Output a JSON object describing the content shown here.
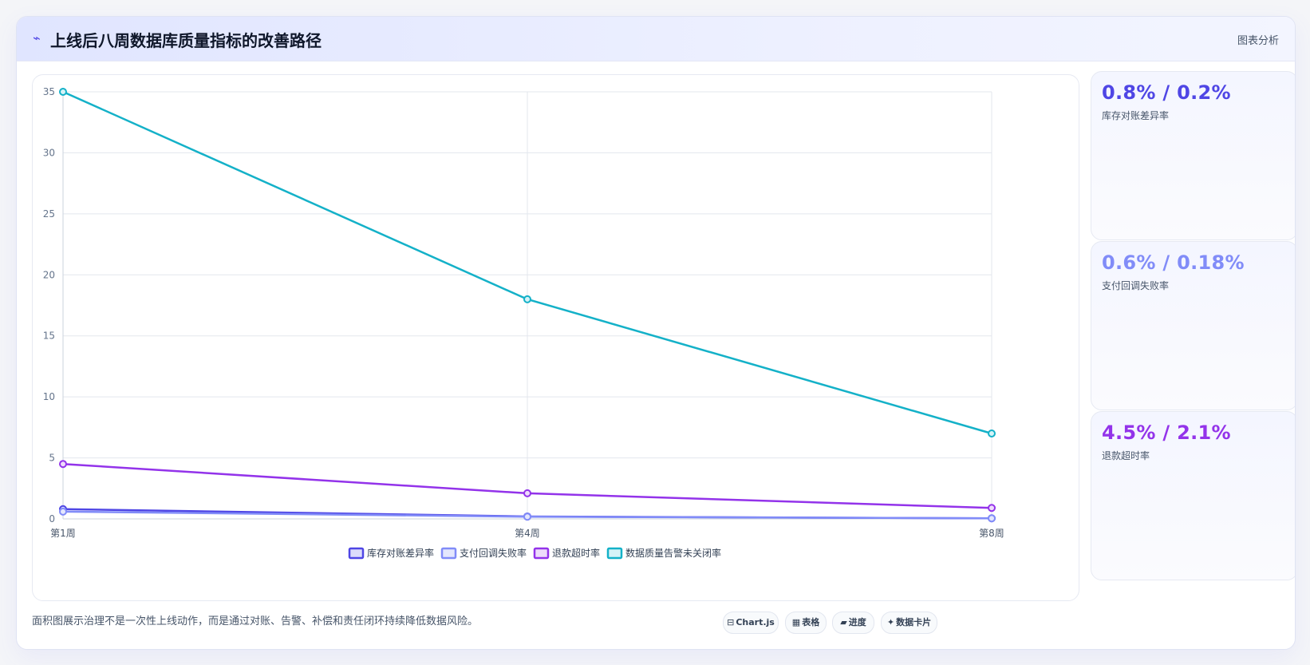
{
  "header": {
    "icon": "chart-trend-icon",
    "title": "上线后八周数据库质量指标的改善路径",
    "right_label": "图表分析"
  },
  "cards": [
    {
      "value": "0.8% / 0.2%",
      "label": "库存对账差异率",
      "color": "#4f46e5"
    },
    {
      "value": "0.6% / 0.18%",
      "label": "支付回调失败率",
      "color": "#818cf8"
    },
    {
      "value": "4.5% / 2.1%",
      "label": "退款超时率",
      "color": "#9333ea"
    }
  ],
  "footer": {
    "note": "面积图展示治理不是一次性上线动作，而是通过对账、告警、补偿和责任闭环持续降低数据风险。",
    "tags": [
      {
        "icon": "chart-icon",
        "glyph": "⊟",
        "label": "Chart.js"
      },
      {
        "icon": "table-icon",
        "glyph": "▦",
        "label": "表格"
      },
      {
        "icon": "progress-icon",
        "glyph": "▰",
        "label": "进度"
      },
      {
        "icon": "card-icon",
        "glyph": "✦",
        "label": "数据卡片"
      }
    ]
  },
  "chart_data": {
    "type": "line",
    "categories": [
      "第1周",
      "第4周",
      "第8周"
    ],
    "ylim": [
      0,
      35
    ],
    "yticks": [
      0,
      5,
      10,
      15,
      20,
      25,
      30,
      35
    ],
    "grid": true,
    "legend_position": "bottom",
    "series": [
      {
        "name": "库存对账差异率",
        "values": [
          0.8,
          0.2,
          0.05
        ],
        "color": "#4f46e5",
        "fill": "#dcdcfb"
      },
      {
        "name": "支付回调失败率",
        "values": [
          0.6,
          0.18,
          0.05
        ],
        "color": "#818cf8",
        "fill": "#e4e7fd"
      },
      {
        "name": "退款超时率",
        "values": [
          4.5,
          2.1,
          0.9
        ],
        "color": "#9333ea",
        "fill": "#eedcfb"
      },
      {
        "name": "数据质量告警未关闭率",
        "values": [
          35,
          18,
          7
        ],
        "color": "#14b1c8",
        "fill": "#d5f3f7"
      }
    ]
  }
}
